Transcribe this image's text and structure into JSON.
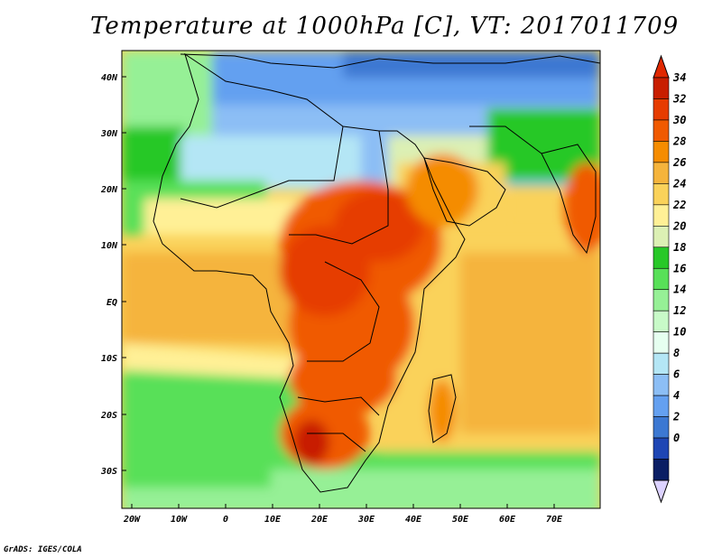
{
  "title": "Temperature at 1000hPa [C], VT: 2017011709",
  "credit": "GrADS: IGES/COLA",
  "lat_labels": [
    "40N",
    "30N",
    "20N",
    "10N",
    "EQ",
    "10S",
    "20S",
    "30S"
  ],
  "lon_labels": [
    "20W",
    "10W",
    "0",
    "10E",
    "20E",
    "30E",
    "40E",
    "50E",
    "60E",
    "70E"
  ],
  "colorbar": {
    "labels": [
      "34",
      "32",
      "30",
      "28",
      "26",
      "24",
      "22",
      "20",
      "18",
      "16",
      "14",
      "12",
      "10",
      "8",
      "6",
      "4",
      "2",
      "0"
    ],
    "colors": [
      "#c81e00",
      "#e63c00",
      "#f05a00",
      "#f58c00",
      "#f5b43c",
      "#fad25a",
      "#fff096",
      "#dcf0b4",
      "#28c828",
      "#58e058",
      "#96f096",
      "#c8fac8",
      "#e6fff0",
      "#b4e6f5",
      "#8cbef5",
      "#64a0f0",
      "#3c78d2",
      "#1e46b4",
      "#0a1e64"
    ],
    "top_arrow_color": "#e02800",
    "bottom_arrow_color": "#dcd2ff"
  }
}
